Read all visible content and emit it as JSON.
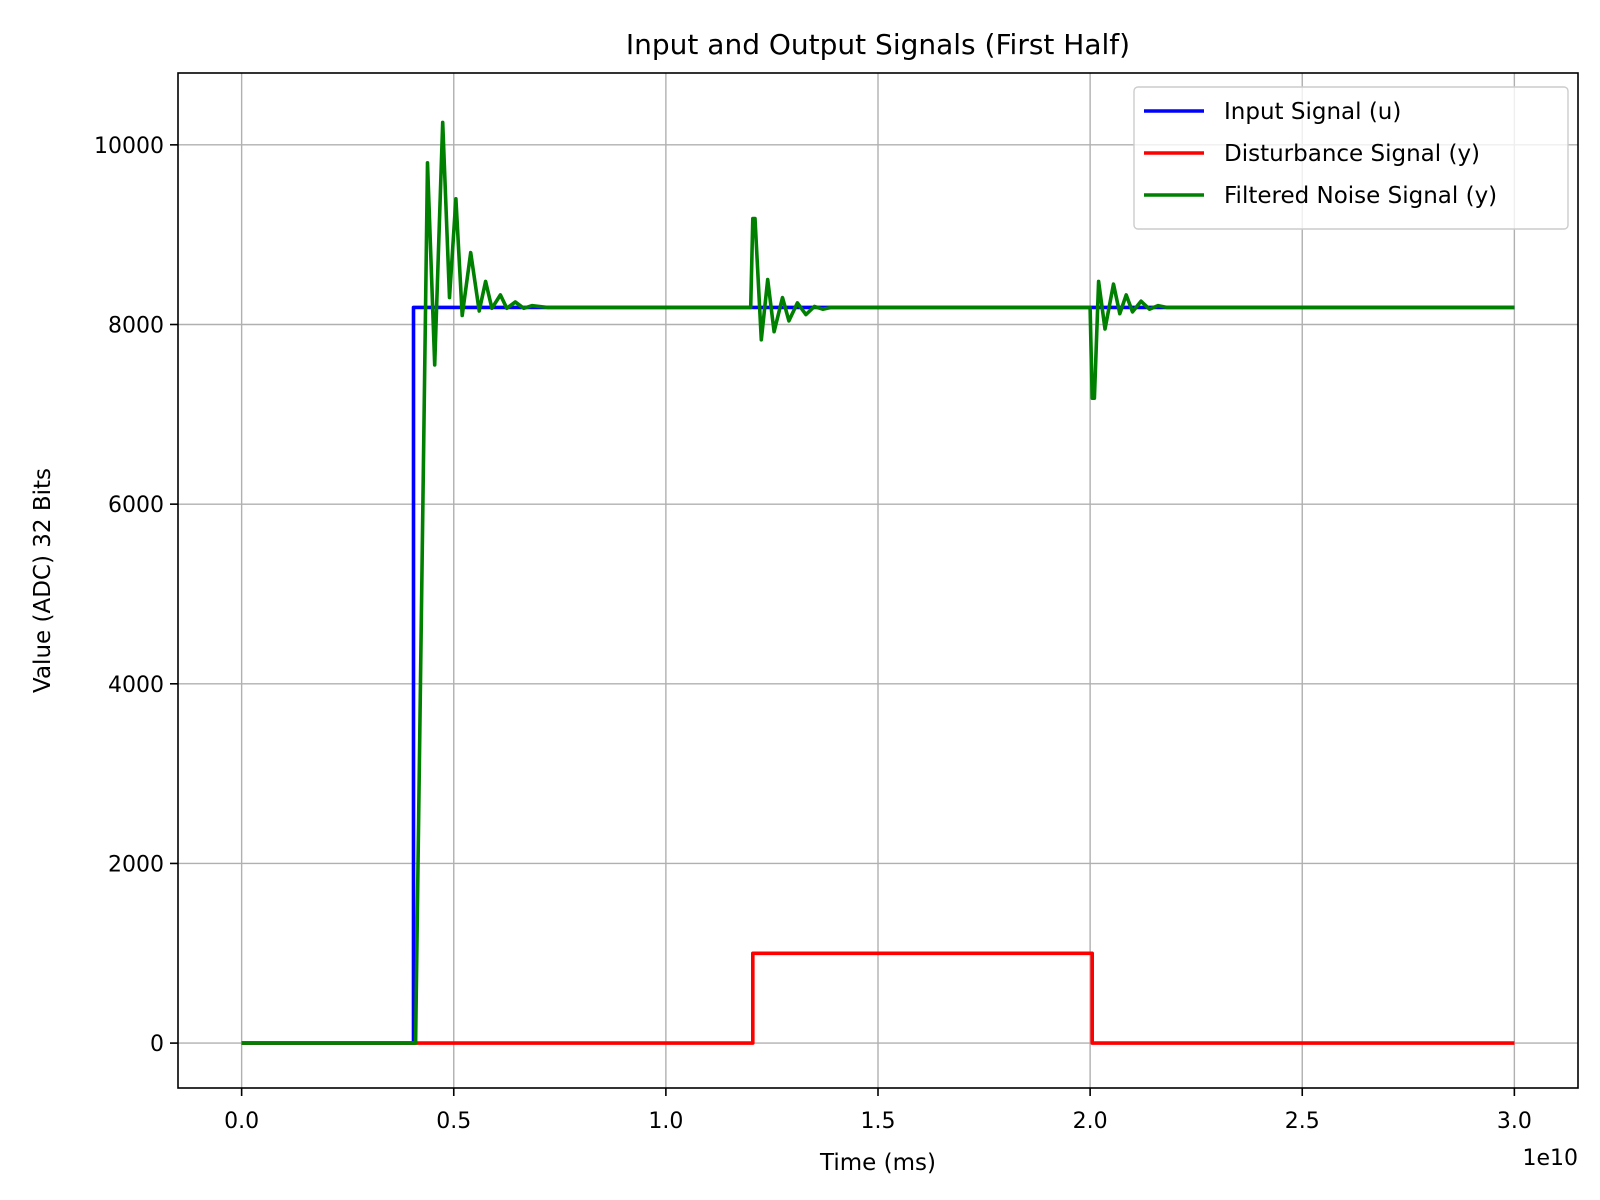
{
  "chart_data": {
    "type": "line",
    "title": "Input and Output Signals (First Half)",
    "xlabel": "Time (ms)",
    "ylabel": "Value (ADC) 32 Bits",
    "x_offset_label": "1e10",
    "xlim": [
      -0.15,
      3.15
    ],
    "ylim": [
      -500,
      10800
    ],
    "x_ticks": [
      0.0,
      0.5,
      1.0,
      1.5,
      2.0,
      2.5,
      3.0
    ],
    "x_tick_labels": [
      "0.0",
      "0.5",
      "1.0",
      "1.5",
      "2.0",
      "2.5",
      "3.0"
    ],
    "y_ticks": [
      0,
      2000,
      4000,
      6000,
      8000,
      10000
    ],
    "y_tick_labels": [
      "0",
      "2000",
      "4000",
      "6000",
      "8000",
      "10000"
    ],
    "grid": true,
    "legend_position": "top-right",
    "series": [
      {
        "name": "Input Signal (u)",
        "color": "#0000ff",
        "x": [
          0.0,
          0.405,
          0.405,
          3.0
        ],
        "y": [
          0,
          0,
          8190,
          8190
        ]
      },
      {
        "name": "Disturbance Signal (y)",
        "color": "#ff0000",
        "x": [
          0.0,
          1.205,
          1.205,
          2.005,
          2.005,
          3.0
        ],
        "y": [
          0,
          0,
          1000,
          1000,
          0,
          0
        ]
      },
      {
        "name": "Filtered Noise Signal (y)",
        "color": "#008000",
        "x": [
          0.0,
          0.41,
          0.422,
          0.438,
          0.455,
          0.474,
          0.49,
          0.505,
          0.52,
          0.54,
          0.56,
          0.575,
          0.59,
          0.61,
          0.625,
          0.645,
          0.665,
          0.685,
          0.72,
          1.2,
          1.205,
          1.21,
          1.225,
          1.24,
          1.255,
          1.275,
          1.29,
          1.31,
          1.33,
          1.35,
          1.37,
          1.39,
          1.42,
          2.0,
          2.005,
          2.01,
          2.02,
          2.035,
          2.055,
          2.07,
          2.085,
          2.1,
          2.12,
          2.14,
          2.16,
          2.18,
          2.2,
          3.0
        ],
        "y": [
          0,
          0,
          4200,
          9800,
          7550,
          10250,
          8300,
          9400,
          8100,
          8800,
          8150,
          8480,
          8180,
          8330,
          8180,
          8250,
          8180,
          8210,
          8190,
          8190,
          9180,
          9180,
          7830,
          8500,
          7920,
          8300,
          8040,
          8240,
          8110,
          8200,
          8170,
          8190,
          8190,
          8190,
          7180,
          7180,
          8480,
          7950,
          8450,
          8120,
          8330,
          8140,
          8260,
          8170,
          8210,
          8190,
          8190,
          8190
        ]
      }
    ]
  }
}
